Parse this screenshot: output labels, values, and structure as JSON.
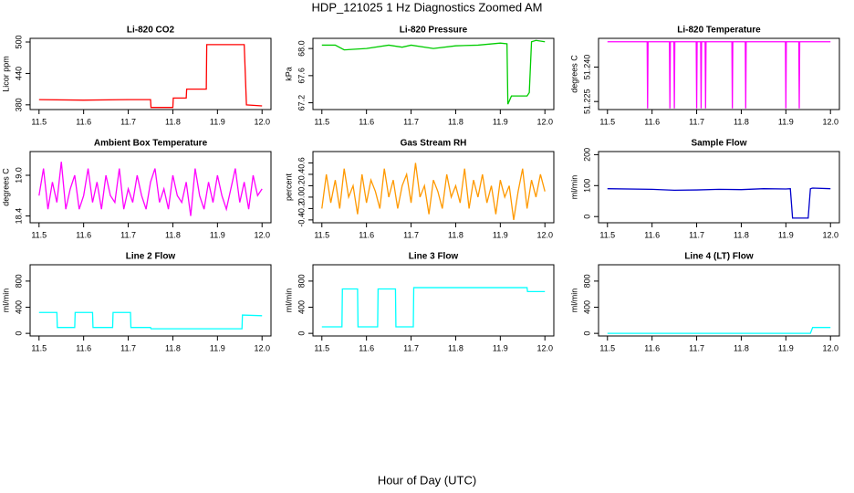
{
  "title": "HDP_121025  1 Hz Diagnostics Zoomed AM",
  "xlabel": "Hour of Day (UTC)",
  "chart_data": [
    {
      "type": "line",
      "title": "Li-820 CO2",
      "ylabel": "Licor ppm",
      "color": "#ff0000",
      "x": [
        11.5,
        11.6,
        11.7,
        11.75,
        11.751,
        11.8,
        11.801,
        11.83,
        11.831,
        11.875,
        11.876,
        11.92,
        11.96,
        11.965,
        12.0
      ],
      "values": [
        390,
        389,
        390,
        390,
        375,
        375,
        393,
        393,
        410,
        410,
        495,
        495,
        495,
        380,
        378
      ],
      "xlim": [
        11.48,
        12.02
      ],
      "ylim": [
        371,
        507
      ],
      "xticks": [
        11.5,
        11.6,
        11.7,
        11.8,
        11.9,
        {
          "value": 12,
          "label": "12.0"
        }
      ],
      "yticks": [
        380,
        440,
        500
      ]
    },
    {
      "type": "line",
      "title": "Li-820 Pressure",
      "ylabel": "kPa",
      "color": "#00cc00",
      "x": [
        11.5,
        11.53,
        11.55,
        11.6,
        11.65,
        11.68,
        11.7,
        11.75,
        11.8,
        11.85,
        11.9,
        11.915,
        11.917,
        11.925,
        11.93,
        11.96,
        11.965,
        11.97,
        11.98,
        12.0
      ],
      "values": [
        68.05,
        68.05,
        67.98,
        68.0,
        68.05,
        68.02,
        68.05,
        68.0,
        68.04,
        68.05,
        68.08,
        68.07,
        67.18,
        67.3,
        67.3,
        67.3,
        67.35,
        68.1,
        68.12,
        68.1
      ],
      "xlim": [
        11.48,
        12.02
      ],
      "ylim": [
        67.1,
        68.15
      ],
      "xticks": [
        11.5,
        11.6,
        11.7,
        11.8,
        11.9,
        {
          "value": 12,
          "label": "12.0"
        }
      ],
      "yticks": [
        67.2,
        67.6,
        {
          "value": 68,
          "label": "68.0"
        }
      ]
    },
    {
      "type": "line",
      "title": "Li-820 Temperature",
      "ylabel": "degrees C",
      "color": "#ff00ff",
      "x": [
        11.5,
        11.589,
        11.59,
        11.591,
        11.639,
        11.64,
        11.641,
        11.649,
        11.65,
        11.651,
        11.699,
        11.7,
        11.701,
        11.709,
        11.71,
        11.711,
        11.719,
        11.72,
        11.721,
        11.779,
        11.78,
        11.781,
        11.809,
        11.81,
        11.811,
        11.899,
        11.9,
        11.901,
        11.929,
        11.93,
        11.931,
        12.0
      ],
      "values": [
        51.251,
        51.251,
        51.222,
        51.251,
        51.251,
        51.222,
        51.251,
        51.251,
        51.222,
        51.251,
        51.251,
        51.222,
        51.251,
        51.251,
        51.222,
        51.251,
        51.251,
        51.222,
        51.251,
        51.251,
        51.222,
        51.251,
        51.251,
        51.222,
        51.251,
        51.251,
        51.222,
        51.251,
        51.251,
        51.222,
        51.251,
        51.251
      ],
      "xlim": [
        11.48,
        12.02
      ],
      "ylim": [
        51.2215,
        51.2525
      ],
      "xticks": [
        11.5,
        11.6,
        11.7,
        11.8,
        11.9,
        {
          "value": 12,
          "label": "12.0"
        }
      ],
      "yticks": [
        51.225,
        {
          "value": 51.24,
          "label": "51.240"
        }
      ]
    },
    {
      "type": "line",
      "title": "Ambient Box Temperature",
      "ylabel": "degrees C",
      "color": "#ff00ff",
      "x": [
        11.5,
        11.51,
        11.52,
        11.53,
        11.54,
        11.55,
        11.56,
        11.57,
        11.58,
        11.59,
        11.6,
        11.61,
        11.62,
        11.63,
        11.64,
        11.65,
        11.66,
        11.67,
        11.68,
        11.69,
        11.7,
        11.71,
        11.72,
        11.73,
        11.74,
        11.75,
        11.76,
        11.77,
        11.78,
        11.79,
        11.8,
        11.81,
        11.82,
        11.83,
        11.84,
        11.85,
        11.86,
        11.87,
        11.88,
        11.89,
        11.9,
        11.91,
        11.92,
        11.93,
        11.94,
        11.95,
        11.96,
        11.97,
        11.98,
        11.99,
        12.0
      ],
      "values": [
        18.7,
        19.1,
        18.5,
        18.9,
        18.6,
        19.2,
        18.5,
        18.8,
        19.0,
        18.5,
        18.7,
        19.1,
        18.6,
        18.9,
        18.5,
        19.0,
        18.7,
        18.6,
        19.1,
        18.5,
        18.8,
        18.6,
        19.0,
        18.7,
        18.5,
        18.9,
        19.1,
        18.6,
        18.8,
        18.5,
        19.0,
        18.7,
        18.6,
        18.9,
        18.4,
        19.1,
        18.7,
        18.5,
        18.9,
        18.6,
        19.0,
        18.7,
        18.5,
        18.8,
        19.1,
        18.6,
        18.9,
        18.5,
        19.0,
        18.7,
        18.8
      ],
      "xlim": [
        11.48,
        12.02
      ],
      "ylim": [
        18.3,
        19.35
      ],
      "xticks": [
        11.5,
        11.6,
        11.7,
        11.8,
        11.9,
        {
          "value": 12,
          "label": "12.0"
        }
      ],
      "yticks": [
        18.4,
        {
          "value": 19,
          "label": "19.0"
        }
      ]
    },
    {
      "type": "line",
      "title": "Gas Stream RH",
      "ylabel": "percent",
      "color": "#ff9900",
      "x": [
        11.5,
        11.51,
        11.52,
        11.53,
        11.54,
        11.55,
        11.56,
        11.57,
        11.58,
        11.59,
        11.6,
        11.61,
        11.62,
        11.63,
        11.64,
        11.65,
        11.66,
        11.67,
        11.68,
        11.69,
        11.7,
        11.71,
        11.72,
        11.73,
        11.74,
        11.75,
        11.76,
        11.77,
        11.78,
        11.79,
        11.8,
        11.81,
        11.82,
        11.83,
        11.84,
        11.85,
        11.86,
        11.87,
        11.88,
        11.89,
        11.9,
        11.91,
        11.92,
        11.93,
        11.94,
        11.95,
        11.96,
        11.97,
        11.98,
        11.99,
        12.0
      ],
      "values": [
        -0.2,
        0.4,
        -0.1,
        0.3,
        -0.2,
        0.5,
        0.0,
        0.2,
        -0.3,
        0.4,
        -0.1,
        0.3,
        0.1,
        -0.2,
        0.5,
        0.0,
        0.3,
        -0.2,
        0.2,
        0.4,
        -0.1,
        0.6,
        0.0,
        0.2,
        -0.3,
        0.3,
        0.1,
        -0.2,
        0.4,
        0.0,
        0.2,
        -0.1,
        0.5,
        -0.2,
        0.3,
        0.0,
        0.4,
        -0.1,
        0.2,
        -0.3,
        0.3,
        0.0,
        0.2,
        -0.4,
        0.1,
        0.5,
        -0.2,
        0.3,
        0.0,
        0.4,
        0.1
      ],
      "xlim": [
        11.48,
        12.02
      ],
      "ylim": [
        -0.45,
        0.8
      ],
      "xticks": [
        11.5,
        11.6,
        11.7,
        11.8,
        11.9,
        {
          "value": 12,
          "label": "12.0"
        }
      ],
      "yticks": [
        -0.4,
        -0.2,
        {
          "value": 0,
          "label": "0.0"
        },
        0.2,
        0.4,
        0.6
      ]
    },
    {
      "type": "line",
      "title": "Sample Flow",
      "ylabel": "ml/min",
      "color": "#0000cc",
      "x": [
        11.5,
        11.6,
        11.65,
        11.7,
        11.75,
        11.8,
        11.85,
        11.9,
        11.91,
        11.915,
        11.95,
        11.955,
        11.96,
        12.0
      ],
      "values": [
        90,
        88,
        85,
        86,
        88,
        87,
        90,
        89,
        90,
        -5,
        -5,
        90,
        92,
        90
      ],
      "xlim": [
        11.48,
        12.02
      ],
      "ylim": [
        -20,
        210
      ],
      "xticks": [
        11.5,
        11.6,
        11.7,
        11.8,
        11.9,
        {
          "value": 12,
          "label": "12.0"
        }
      ],
      "yticks": [
        0,
        100,
        200
      ]
    },
    {
      "type": "line",
      "title": "Line 2 Flow",
      "ylabel": "ml/min",
      "color": "#00ffff",
      "x": [
        11.5,
        11.54,
        11.541,
        11.58,
        11.581,
        11.62,
        11.621,
        11.665,
        11.666,
        11.705,
        11.706,
        11.75,
        11.751,
        11.955,
        11.956,
        12.0
      ],
      "values": [
        320,
        320,
        90,
        90,
        320,
        320,
        90,
        90,
        320,
        320,
        90,
        90,
        70,
        70,
        280,
        270
      ],
      "xlim": [
        11.48,
        12.02
      ],
      "ylim": [
        -40,
        1050
      ],
      "xticks": [
        11.5,
        11.6,
        11.7,
        11.8,
        11.9,
        {
          "value": 12,
          "label": "12.0"
        }
      ],
      "yticks": [
        0,
        400,
        800
      ]
    },
    {
      "type": "line",
      "title": "Line 3 Flow",
      "ylabel": "ml/min",
      "color": "#00ffff",
      "x": [
        11.5,
        11.545,
        11.546,
        11.58,
        11.581,
        11.625,
        11.626,
        11.665,
        11.666,
        11.705,
        11.706,
        11.96,
        11.961,
        12.0
      ],
      "values": [
        100,
        100,
        680,
        680,
        100,
        100,
        680,
        680,
        100,
        100,
        700,
        700,
        640,
        640
      ],
      "xlim": [
        11.48,
        12.02
      ],
      "ylim": [
        -40,
        1050
      ],
      "xticks": [
        11.5,
        11.6,
        11.7,
        11.8,
        11.9,
        {
          "value": 12,
          "label": "12.0"
        }
      ],
      "yticks": [
        0,
        400,
        800
      ]
    },
    {
      "type": "line",
      "title": "Line 4 (LT) Flow",
      "ylabel": "ml/min",
      "color": "#00ffff",
      "x": [
        11.5,
        11.955,
        11.96,
        12.0
      ],
      "values": [
        0,
        0,
        90,
        90
      ],
      "xlim": [
        11.48,
        12.02
      ],
      "ylim": [
        -40,
        1050
      ],
      "xticks": [
        11.5,
        11.6,
        11.7,
        11.8,
        11.9,
        {
          "value": 12,
          "label": "12.0"
        }
      ],
      "yticks": [
        0,
        400,
        800
      ]
    }
  ]
}
